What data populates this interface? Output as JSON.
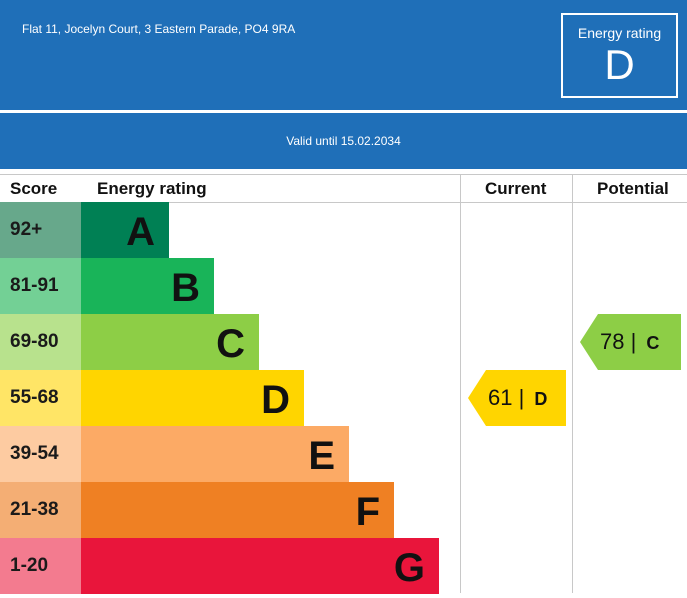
{
  "header": {
    "address": "Flat 11, Jocelyn Court, 3 Eastern Parade, PO4 9RA",
    "rating_label": "Energy rating",
    "rating_letter": "D"
  },
  "validity": "Valid until 15.02.2034",
  "chart_data": {
    "type": "table",
    "columns": [
      "Score",
      "Energy rating",
      "Current",
      "Potential"
    ],
    "bands": [
      {
        "score": "92+",
        "letter": "A",
        "color": "#008054",
        "score_bg": "#67a88b"
      },
      {
        "score": "81-91",
        "letter": "B",
        "color": "#19b459",
        "score_bg": "#73d095"
      },
      {
        "score": "69-80",
        "letter": "C",
        "color": "#8dce46",
        "score_bg": "#b8e28d"
      },
      {
        "score": "55-68",
        "letter": "D",
        "color": "#ffd500",
        "score_bg": "#ffe566"
      },
      {
        "score": "39-54",
        "letter": "E",
        "color": "#fcaa65",
        "score_bg": "#fdcba1"
      },
      {
        "score": "21-38",
        "letter": "F",
        "color": "#ef8023",
        "score_bg": "#f4ae74"
      },
      {
        "score": "1-20",
        "letter": "G",
        "color": "#e9153b",
        "score_bg": "#f37b8f"
      }
    ],
    "current": {
      "value": 61,
      "letter": "D",
      "color": "#ffd500"
    },
    "potential": {
      "value": 78,
      "letter": "C",
      "color": "#8dce46"
    }
  }
}
